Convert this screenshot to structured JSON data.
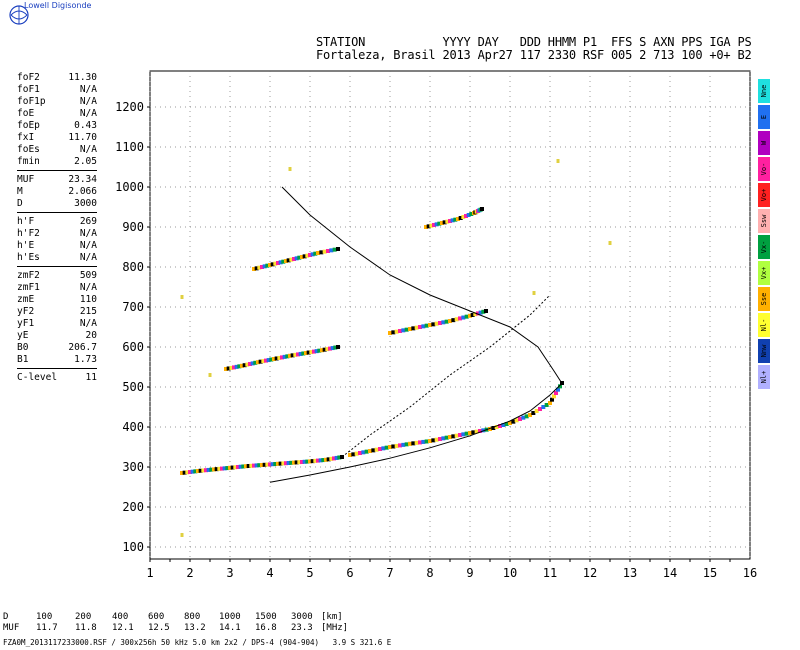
{
  "brand": "Lowell Digisonde",
  "header": {
    "line1": "STATION           YYYY DAY   DDD HHMM P1  FFS S AXN PPS IGA PS",
    "line2": "Fortaleza, Brasil 2013 Apr27 117 2330 RSF 005 2 713 100 +0+ B2"
  },
  "params": [
    {
      "label": "foF2",
      "value": "11.30"
    },
    {
      "label": "foF1",
      "value": "N/A"
    },
    {
      "label": "foF1p",
      "value": "N/A"
    },
    {
      "label": "foE",
      "value": "N/A"
    },
    {
      "label": "foEp",
      "value": "0.43"
    },
    {
      "label": "fxI",
      "value": "11.70"
    },
    {
      "label": "foEs",
      "value": "N/A"
    },
    {
      "label": "fmin",
      "value": "2.05"
    },
    {
      "sep": true
    },
    {
      "label": "MUF",
      "value": "23.34"
    },
    {
      "label": "M",
      "value": "2.066"
    },
    {
      "label": "D",
      "value": "3000"
    },
    {
      "sep": true
    },
    {
      "label": "h'F",
      "value": "269"
    },
    {
      "label": "h'F2",
      "value": "N/A"
    },
    {
      "label": "h'E",
      "value": "N/A"
    },
    {
      "label": "h'Es",
      "value": "N/A"
    },
    {
      "sep": true
    },
    {
      "label": "zmF2",
      "value": "509"
    },
    {
      "label": "zmF1",
      "value": "N/A"
    },
    {
      "label": "zmE",
      "value": "110"
    },
    {
      "label": "yF2",
      "value": "215"
    },
    {
      "label": "yF1",
      "value": "N/A"
    },
    {
      "label": "yE",
      "value": "20"
    },
    {
      "label": "B0",
      "value": "206.7"
    },
    {
      "label": "B1",
      "value": "1.73"
    },
    {
      "sep": true
    },
    {
      "label": "C-level",
      "value": "11"
    }
  ],
  "legend": [
    {
      "label": "Nne",
      "color": "#1fe0e0"
    },
    {
      "label": "E",
      "color": "#2070f0"
    },
    {
      "label": "W",
      "color": "#b000c0"
    },
    {
      "label": "Vo-",
      "color": "#ff20a0"
    },
    {
      "label": "Vo+",
      "color": "#ff2020"
    },
    {
      "label": "Ssw",
      "color": "#ffb0b0"
    },
    {
      "label": "Vx-",
      "color": "#00a040"
    },
    {
      "label": "Vx+",
      "color": "#b0ff40"
    },
    {
      "label": "Sse",
      "color": "#ffb000"
    },
    {
      "label": "Nl-",
      "color": "#ffff30"
    },
    {
      "label": "Nnw",
      "color": "#1040b0"
    },
    {
      "label": "Nl+",
      "color": "#b0b0ff"
    }
  ],
  "dmuf": {
    "d_label": "D",
    "d_values": [
      "100",
      "200",
      "400",
      "600",
      "800",
      "1000",
      "1500",
      "3000"
    ],
    "d_unit": "[km]",
    "muf_label": "MUF",
    "muf_values": [
      "11.7",
      "11.8",
      "12.1",
      "12.5",
      "13.2",
      "14.1",
      "16.8",
      "23.3"
    ],
    "muf_unit": "[MHz]"
  },
  "footer": "FZA0M_2013117233000.RSF / 300x256h 50 kHz 5.0 km 2x2 / DPS-4 (904-904)   3.9 S 321.6 E",
  "chart_data": {
    "type": "scatter",
    "xlim": [
      1,
      16
    ],
    "ylim": [
      70,
      1290
    ],
    "xticks": [
      1,
      2,
      3,
      4,
      5,
      6,
      7,
      8,
      9,
      10,
      11,
      12,
      13,
      14,
      15,
      16
    ],
    "yticks": [
      100,
      200,
      300,
      400,
      500,
      600,
      700,
      800,
      900,
      1000,
      1100,
      1200
    ],
    "grid": true,
    "series": [
      {
        "kind": "echo",
        "x": [
          1.8,
          2.2,
          2.6,
          3.0,
          3.4,
          3.8,
          4.2,
          4.6,
          5.0,
          5.4,
          5.8
        ],
        "y": [
          285,
          290,
          294,
          298,
          302,
          305,
          308,
          311,
          314,
          318,
          325
        ]
      },
      {
        "kind": "echo",
        "x": [
          6.0,
          6.5,
          7.0,
          7.5,
          8.0,
          8.5,
          9.0,
          9.5,
          10.0,
          10.5,
          11.0,
          11.3
        ],
        "y": [
          330,
          340,
          350,
          358,
          365,
          375,
          385,
          395,
          410,
          430,
          460,
          510
        ]
      },
      {
        "kind": "echo",
        "x": [
          2.9,
          3.3,
          3.7,
          4.1,
          4.5,
          4.9,
          5.3,
          5.7
        ],
        "y": [
          545,
          553,
          562,
          570,
          578,
          585,
          592,
          600
        ]
      },
      {
        "kind": "echo",
        "x": [
          7.0,
          7.5,
          8.0,
          8.5,
          9.0,
          9.4
        ],
        "y": [
          635,
          645,
          655,
          665,
          678,
          690
        ]
      },
      {
        "kind": "echo",
        "x": [
          3.6,
          4.0,
          4.4,
          4.8,
          5.2,
          5.7
        ],
        "y": [
          795,
          805,
          815,
          825,
          835,
          845
        ]
      },
      {
        "kind": "echo",
        "x": [
          7.9,
          8.3,
          8.7,
          9.1,
          9.3
        ],
        "y": [
          900,
          910,
          920,
          935,
          945
        ]
      },
      {
        "kind": "profile",
        "x": [
          4.3,
          5.0,
          6.0,
          7.0,
          8.0,
          9.0,
          10.0,
          10.7,
          11.1,
          11.3
        ],
        "y": [
          1000,
          930,
          850,
          780,
          730,
          690,
          650,
          600,
          540,
          509
        ]
      },
      {
        "kind": "trace",
        "x": [
          4.0,
          5.0,
          6.0,
          7.0,
          8.0,
          9.0,
          10.0,
          10.5,
          11.0,
          11.3
        ],
        "y": [
          262,
          280,
          300,
          322,
          348,
          378,
          415,
          440,
          480,
          509
        ]
      },
      {
        "kind": "dotted",
        "x": [
          5.8,
          6.5,
          7.5,
          8.5,
          9.5,
          10.5,
          11.0
        ],
        "y": [
          325,
          380,
          450,
          530,
          600,
          680,
          730
        ]
      }
    ],
    "isolated": [
      {
        "x": 1.8,
        "y": 130
      },
      {
        "x": 1.8,
        "y": 725
      },
      {
        "x": 4.5,
        "y": 1045
      },
      {
        "x": 12.5,
        "y": 860
      },
      {
        "x": 11.2,
        "y": 1065
      },
      {
        "x": 10.6,
        "y": 735
      },
      {
        "x": 2.5,
        "y": 530
      }
    ]
  }
}
